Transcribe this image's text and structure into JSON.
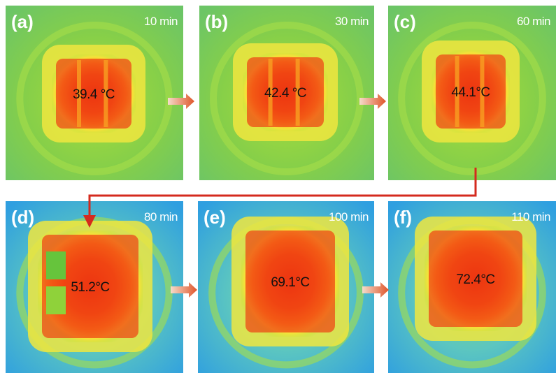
{
  "panels": [
    {
      "label": "(a)",
      "time": "10 min",
      "temperature": "39.4 °C"
    },
    {
      "label": "(b)",
      "time": "30 min",
      "temperature": "42.4 °C"
    },
    {
      "label": "(c)",
      "time": "60 min",
      "temperature": "44.1°C"
    },
    {
      "label": "(d)",
      "time": "80 min",
      "temperature": "51.2°C"
    },
    {
      "label": "(e)",
      "time": "100 min",
      "temperature": "69.1°C"
    },
    {
      "label": "(f)",
      "time": "110 min",
      "temperature": "72.4°C"
    }
  ]
}
